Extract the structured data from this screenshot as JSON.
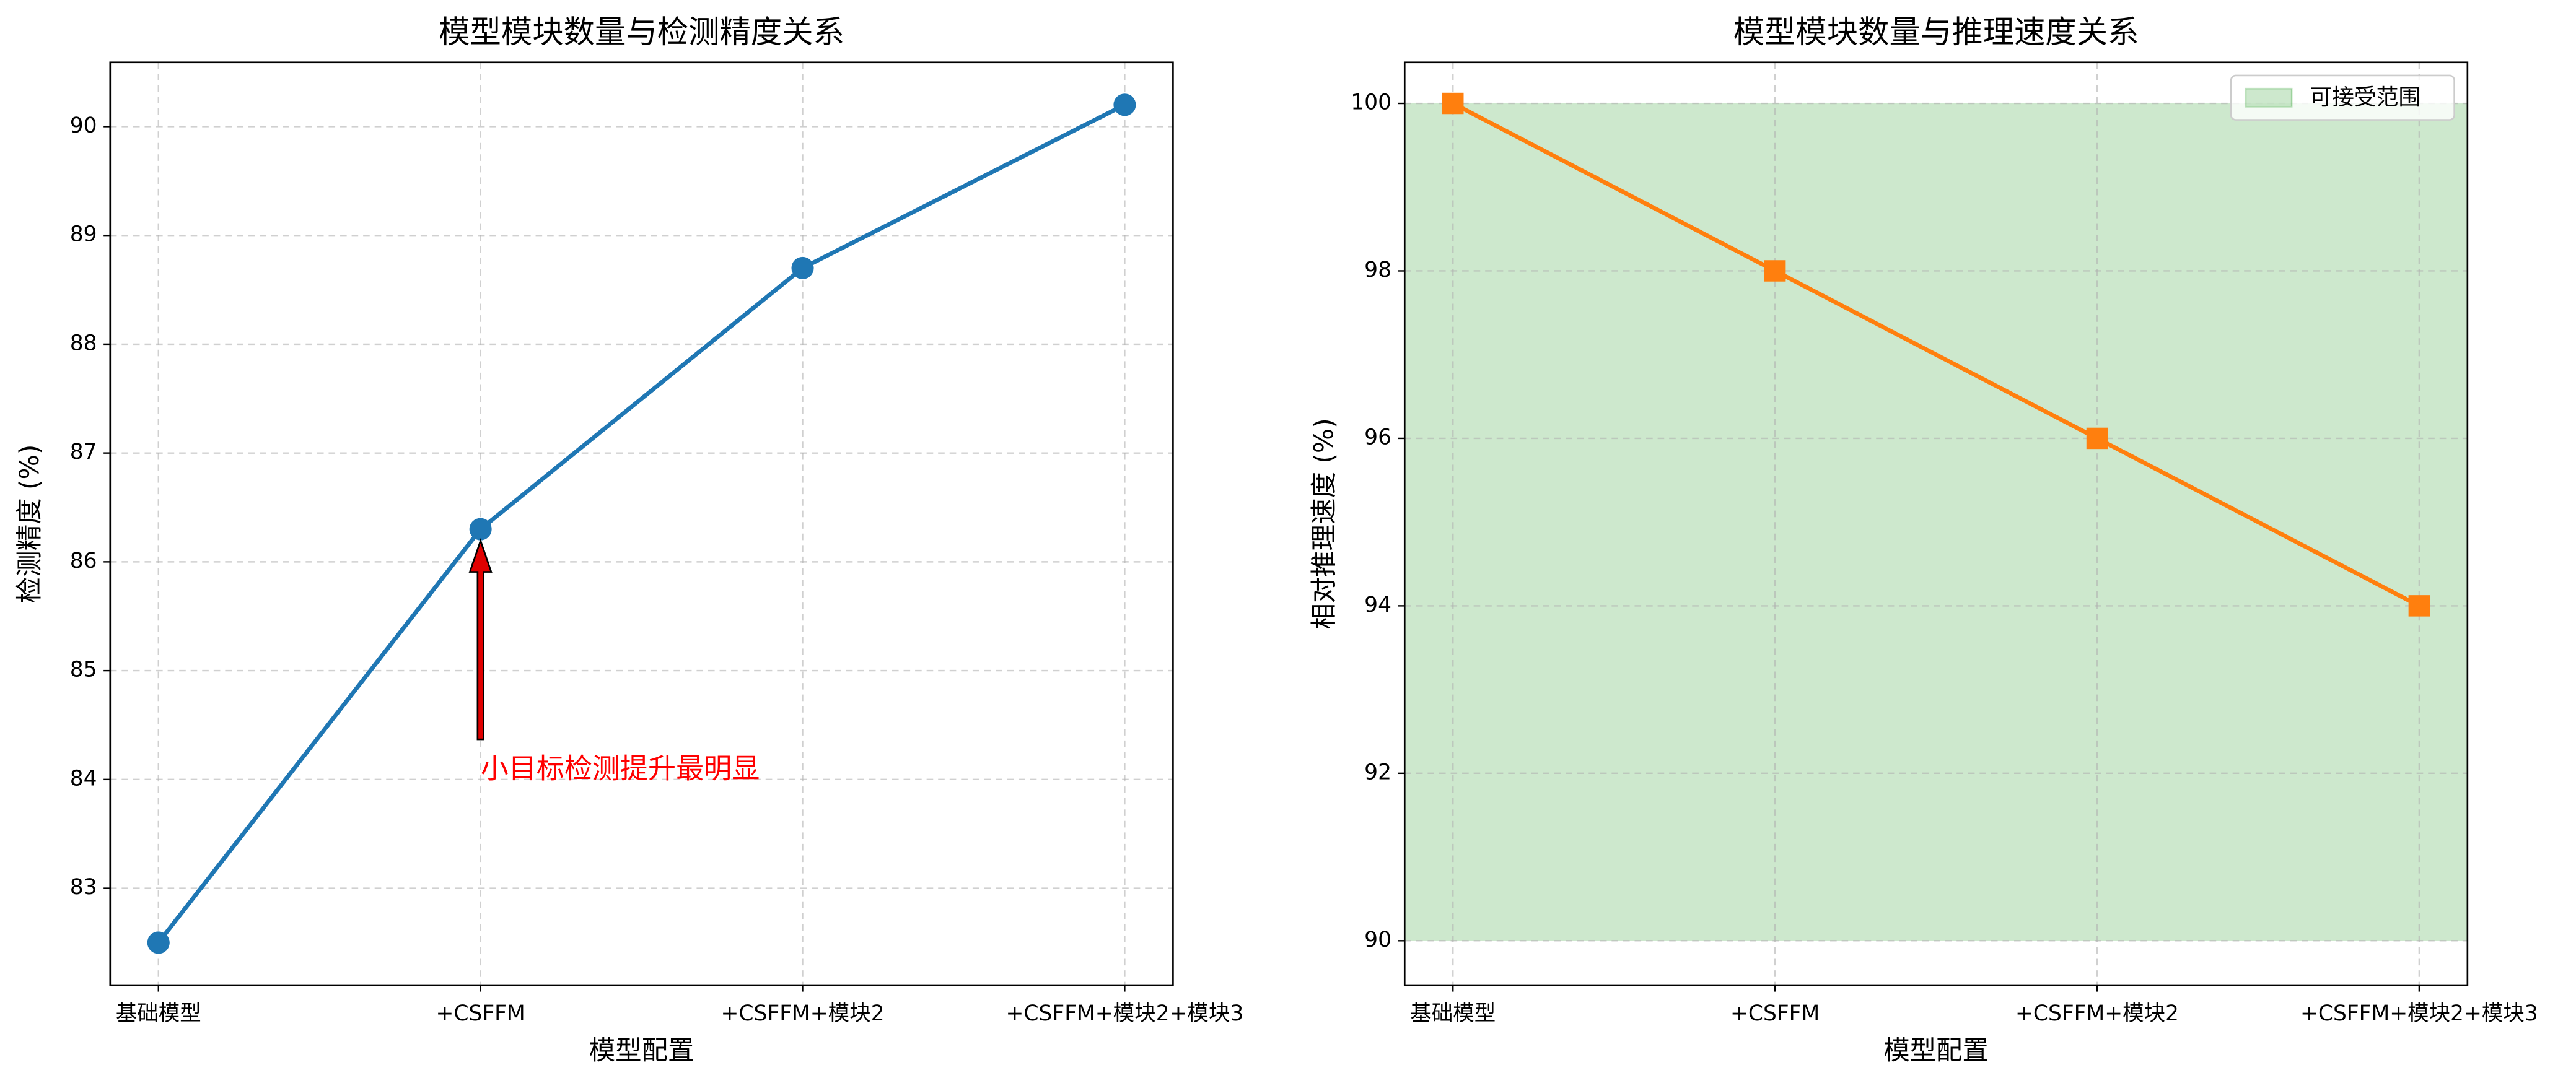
{
  "chart_data": [
    {
      "type": "line",
      "title": "模型模块数量与检测精度关系",
      "xlabel": "模型配置",
      "ylabel": "检测精度 (%)",
      "categories": [
        "基础模型",
        "+CSFFM",
        "+CSFFM+模块2",
        "+CSFFM+模块2+模块3"
      ],
      "values": [
        82.5,
        86.3,
        88.7,
        90.2
      ],
      "color": "#1f77b4",
      "marker": "circle",
      "ylim": [
        82.11,
        90.59
      ],
      "yticks": [
        83,
        84,
        85,
        86,
        87,
        88,
        89,
        90
      ],
      "grid": true,
      "annotation": "小目标检测提升最明显"
    },
    {
      "type": "line",
      "title": "模型模块数量与推理速度关系",
      "xlabel": "模型配置",
      "ylabel": "相对推理速度 (%)",
      "categories": [
        "基础模型",
        "+CSFFM",
        "+CSFFM+模块2",
        "+CSFFM+模块2+模块3"
      ],
      "values": [
        100,
        98,
        96,
        94
      ],
      "color": "#ff7f0e",
      "marker": "square",
      "ylim": [
        89.47,
        100.49
      ],
      "yticks": [
        90,
        92,
        94,
        96,
        98,
        100
      ],
      "grid": true,
      "band": {
        "label": "可接受范围",
        "range": [
          90,
          100
        ],
        "color": "#2ca02c"
      },
      "legend": "upper right"
    }
  ]
}
